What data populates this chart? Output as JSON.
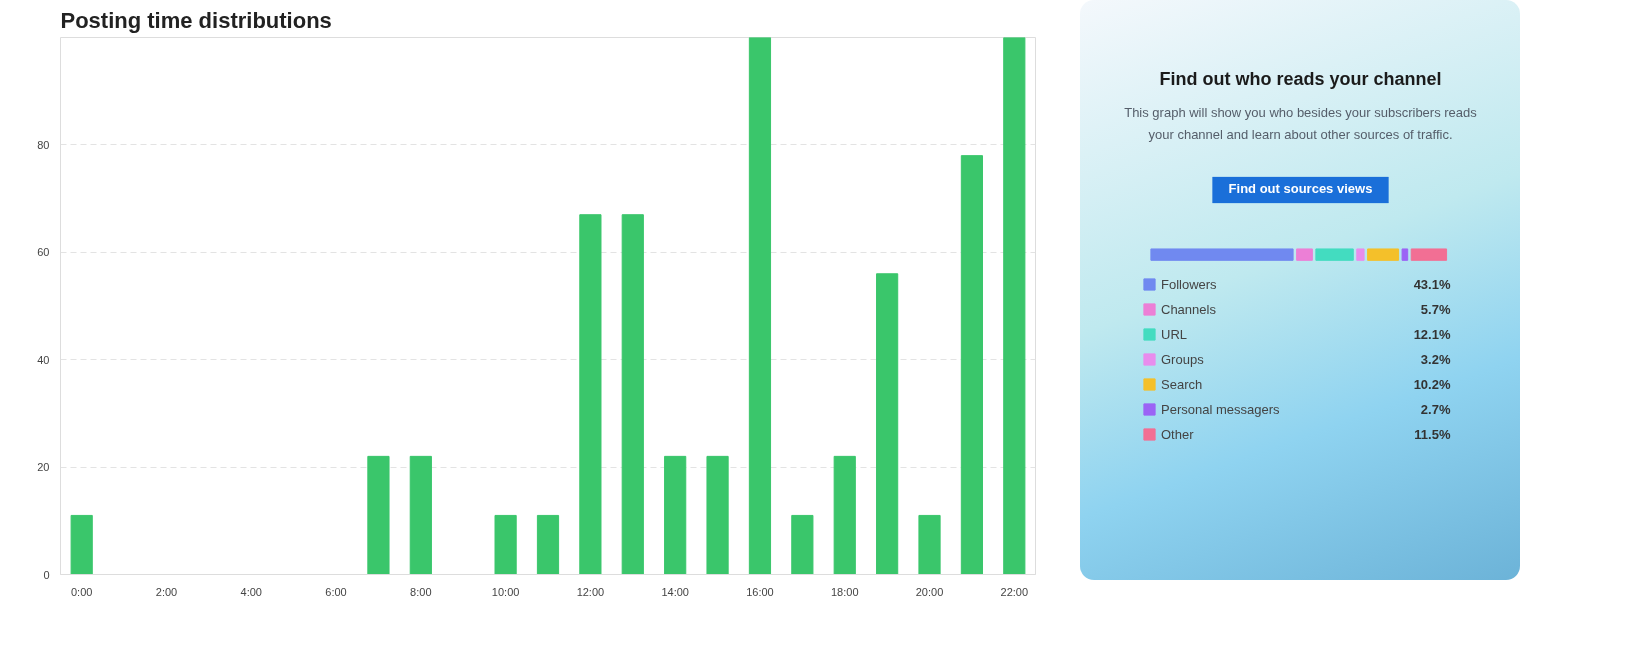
{
  "chart_data": [
    {
      "type": "bar",
      "title": "Posting time distributions",
      "x": [
        0,
        1,
        2,
        3,
        4,
        5,
        6,
        7,
        8,
        9,
        10,
        11,
        12,
        13,
        14,
        15,
        16,
        17,
        18,
        19,
        20,
        21,
        22
      ],
      "values": [
        11,
        0,
        0,
        0,
        0,
        0,
        0,
        22,
        22,
        0,
        11,
        11,
        67,
        67,
        22,
        22,
        100,
        11,
        22,
        56,
        11,
        78,
        100
      ],
      "color": "#3ac66b",
      "xlim": [
        -0.5,
        22.5
      ],
      "xticks": [
        {
          "value": 0,
          "label": "0:00"
        },
        {
          "value": 2,
          "label": "2:00"
        },
        {
          "value": 4,
          "label": "4:00"
        },
        {
          "value": 6,
          "label": "6:00"
        },
        {
          "value": 8,
          "label": "8:00"
        },
        {
          "value": 10,
          "label": "10:00"
        },
        {
          "value": 12,
          "label": "12:00"
        },
        {
          "value": 14,
          "label": "14:00"
        },
        {
          "value": 16,
          "label": "16:00"
        },
        {
          "value": 18,
          "label": "18:00"
        },
        {
          "value": 20,
          "label": "20:00"
        },
        {
          "value": 22,
          "label": "22:00"
        }
      ],
      "ylim": [
        0,
        100
      ],
      "yticks": [
        0,
        20,
        40,
        60,
        80,
        {
          "value": 100,
          "label": null
        }
      ],
      "grid": "y"
    },
    {
      "type": "other",
      "title": "Find out who reads your channel",
      "subtitle": "This graph will show you who besides your subscribers reads your channel and learn about other sources of traffic.",
      "annotations": [
        "Find out sources views"
      ],
      "value_labels": [
        "43.1%",
        "5.7%",
        "12.1%",
        "3.2%",
        "10.2%",
        "2.7%",
        "11.5%"
      ],
      "categories": [
        "Followers",
        "Channels",
        "URL",
        "Groups",
        "Search",
        "Personal messagers",
        "Other"
      ],
      "values": [
        43.1,
        5.7,
        12.1,
        3.2,
        10.2,
        2.7,
        11.5
      ],
      "colors": [
        "#7089f0",
        "#ec7fd6",
        "#43dcc0",
        "#e88ded",
        "#f4c02a",
        "#9b63f5",
        "#f26f94"
      ]
    }
  ]
}
